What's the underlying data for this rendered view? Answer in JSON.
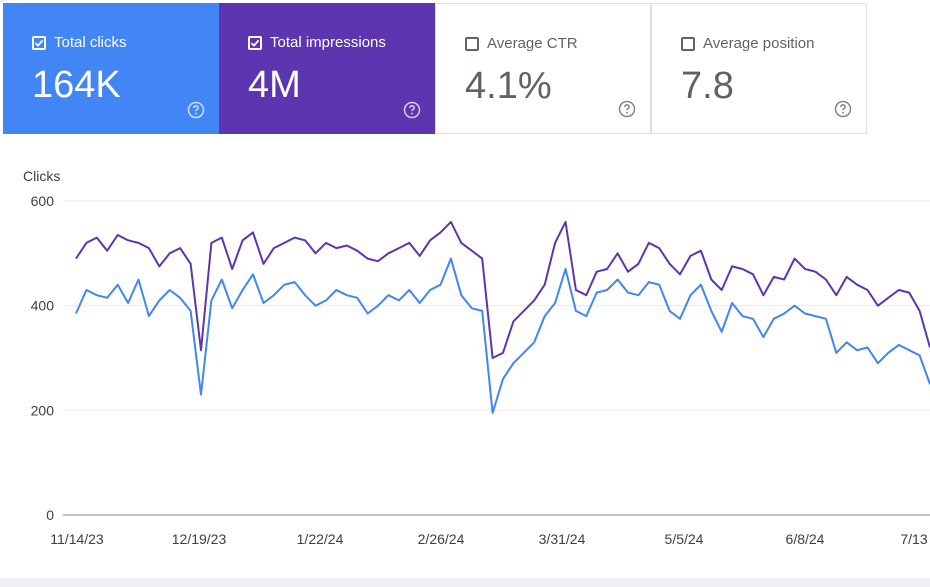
{
  "cards": [
    {
      "label": "Total clicks",
      "value": "164K",
      "checked": true,
      "color": "#4285f4"
    },
    {
      "label": "Total impressions",
      "value": "4M",
      "checked": true,
      "color": "#5e35b1"
    },
    {
      "label": "Average CTR",
      "value": "4.1%",
      "checked": false,
      "color": "#ffffff"
    },
    {
      "label": "Average position",
      "value": "7.8",
      "checked": false,
      "color": "#ffffff"
    }
  ],
  "chart_data": {
    "type": "line",
    "title": "",
    "ylabel": "Clicks",
    "xlabel": "",
    "ylim": [
      0,
      600
    ],
    "yticks": [
      "0",
      "200",
      "400",
      "600"
    ],
    "x_tick_labels": [
      "11/14/23",
      "12/19/23",
      "1/22/24",
      "2/26/24",
      "3/31/24",
      "5/5/24",
      "6/8/24",
      "7/13"
    ],
    "x": [
      "11/14/23",
      "11/17/23",
      "11/20/23",
      "11/23/23",
      "11/26/23",
      "11/29/23",
      "12/2/23",
      "12/5/23",
      "12/8/23",
      "12/11/23",
      "12/14/23",
      "12/17/23",
      "12/19/23",
      "12/22/23",
      "12/25/23",
      "12/28/23",
      "12/31/23",
      "1/3/24",
      "1/6/24",
      "1/9/24",
      "1/12/24",
      "1/15/24",
      "1/18/24",
      "1/22/24",
      "1/25/24",
      "1/28/24",
      "1/31/24",
      "2/3/24",
      "2/6/24",
      "2/9/24",
      "2/12/24",
      "2/15/24",
      "2/18/24",
      "2/21/24",
      "2/24/24",
      "2/26/24",
      "2/29/24",
      "3/3/24",
      "3/6/24",
      "3/9/24",
      "3/12/24",
      "3/15/24",
      "3/17/24",
      "3/20/24",
      "3/23/24",
      "3/26/24",
      "3/29/24",
      "3/31/24",
      "4/3/24",
      "4/6/24",
      "4/9/24",
      "4/12/24",
      "4/15/24",
      "4/18/24",
      "4/21/24",
      "4/24/24",
      "4/27/24",
      "4/30/24",
      "5/3/24",
      "5/5/24",
      "5/8/24",
      "5/11/24",
      "5/14/24",
      "5/17/24",
      "5/20/24",
      "5/23/24",
      "5/26/24",
      "5/29/24",
      "6/1/24",
      "6/4/24",
      "6/8/24",
      "6/11/24",
      "6/14/24",
      "6/17/24",
      "6/20/24",
      "6/23/24",
      "6/26/24",
      "6/29/24",
      "7/2/24",
      "7/5/24",
      "7/8/24",
      "7/11/24",
      "7/14/24"
    ],
    "series": [
      {
        "color": "#5e35b1",
        "values": [
          490,
          520,
          530,
          505,
          535,
          525,
          520,
          510,
          475,
          500,
          510,
          480,
          315,
          520,
          530,
          470,
          525,
          540,
          480,
          510,
          520,
          530,
          525,
          500,
          520,
          510,
          515,
          505,
          490,
          485,
          500,
          510,
          520,
          495,
          525,
          540,
          560,
          520,
          505,
          490,
          300,
          310,
          370,
          390,
          410,
          440,
          520,
          560,
          430,
          420,
          465,
          470,
          500,
          465,
          480,
          520,
          510,
          480,
          460,
          495,
          505,
          450,
          430,
          475,
          470,
          460,
          420,
          455,
          450,
          490,
          470,
          465,
          450,
          420,
          455,
          440,
          430,
          400,
          415,
          430,
          425,
          390,
          320
        ]
      },
      {
        "color": "#4285f4",
        "values": [
          385,
          430,
          420,
          415,
          440,
          405,
          450,
          380,
          410,
          430,
          415,
          390,
          230,
          410,
          450,
          395,
          430,
          460,
          405,
          420,
          440,
          445,
          420,
          400,
          410,
          430,
          420,
          415,
          385,
          400,
          420,
          410,
          430,
          405,
          430,
          440,
          490,
          420,
          395,
          390,
          195,
          260,
          290,
          310,
          330,
          380,
          405,
          470,
          390,
          380,
          425,
          430,
          450,
          425,
          420,
          445,
          440,
          390,
          375,
          420,
          440,
          390,
          350,
          405,
          380,
          375,
          340,
          375,
          385,
          400,
          385,
          380,
          375,
          310,
          330,
          315,
          320,
          290,
          310,
          325,
          315,
          305,
          250
        ]
      }
    ]
  }
}
